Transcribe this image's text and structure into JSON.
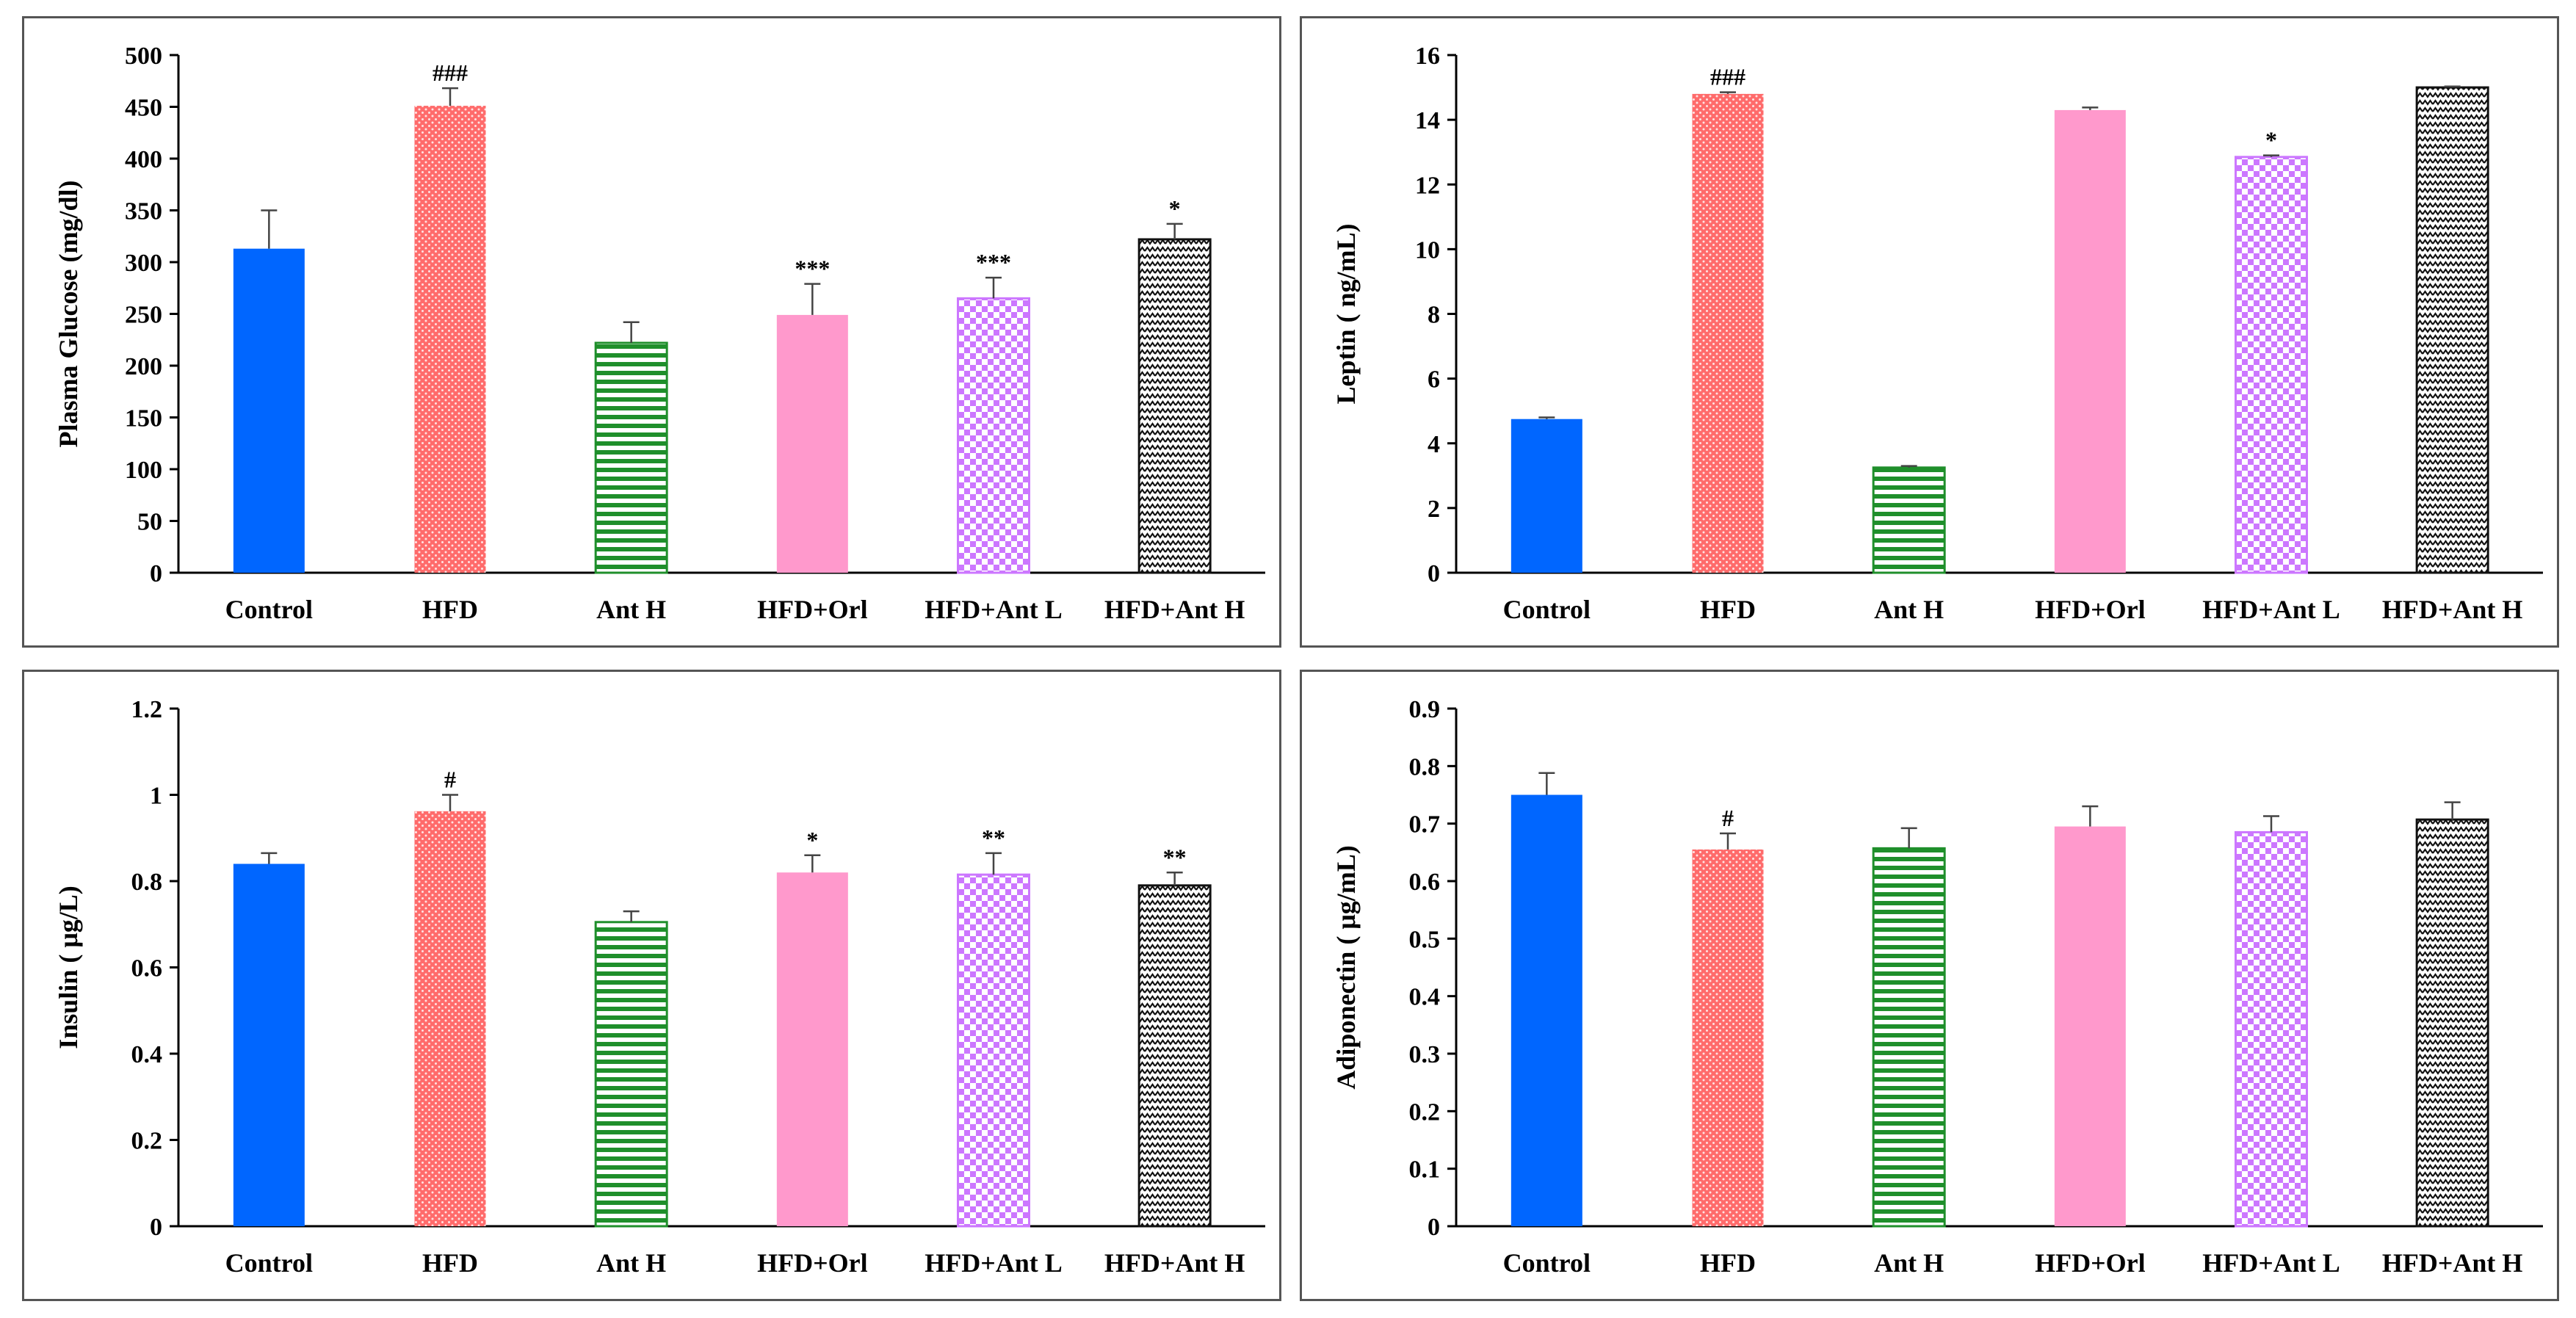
{
  "chart_data": [
    {
      "type": "bar",
      "ylabel": "Plasma Glucose (mg/dl)",
      "ylim": [
        0,
        500
      ],
      "yticks": [
        0,
        50,
        100,
        150,
        200,
        250,
        300,
        350,
        400,
        450,
        500
      ],
      "categories": [
        "Control",
        "HFD",
        "Ant H",
        "HFD+Orl",
        "HFD+Ant L",
        "HFD+Ant H"
      ],
      "values": [
        313,
        451,
        222,
        249,
        265,
        322
      ],
      "errors": [
        37,
        17,
        20,
        30,
        20,
        15
      ],
      "annotations": [
        "",
        "###",
        "",
        "***",
        "***",
        "*"
      ]
    },
    {
      "type": "bar",
      "ylabel": "Leptin ( ng/mL)",
      "ylim": [
        0,
        16
      ],
      "yticks": [
        0,
        2,
        4,
        6,
        8,
        10,
        12,
        14,
        16
      ],
      "categories": [
        "Control",
        "HFD",
        "Ant H",
        "HFD+Orl",
        "HFD+Ant L",
        "HFD+Ant H"
      ],
      "values": [
        4.75,
        14.8,
        3.25,
        14.3,
        12.85,
        15.0
      ],
      "errors": [
        0.05,
        0.05,
        0.05,
        0.08,
        0.05,
        0.03
      ],
      "annotations": [
        "",
        "###",
        "",
        "",
        "*",
        ""
      ]
    },
    {
      "type": "bar",
      "ylabel": "Insulin ( μg/L)",
      "ylim": [
        0,
        1.2
      ],
      "yticks": [
        0,
        0.2,
        0.4,
        0.6,
        0.8,
        1,
        1.2
      ],
      "categories": [
        "Control",
        "HFD",
        "Ant H",
        "HFD+Orl",
        "HFD+Ant L",
        "HFD+Ant H"
      ],
      "values": [
        0.84,
        0.962,
        0.705,
        0.82,
        0.815,
        0.79
      ],
      "errors": [
        0.025,
        0.038,
        0.025,
        0.04,
        0.05,
        0.03
      ],
      "annotations": [
        "",
        "#",
        "",
        "*",
        "**",
        "**"
      ]
    },
    {
      "type": "bar",
      "ylabel": "Adiponectin ( μg/mL)",
      "ylim": [
        0,
        0.9
      ],
      "yticks": [
        0,
        0.1,
        0.2,
        0.3,
        0.4,
        0.5,
        0.6,
        0.7,
        0.8,
        0.9
      ],
      "categories": [
        "Control",
        "HFD",
        "Ant H",
        "HFD+Orl",
        "HFD+Ant L",
        "HFD+Ant H"
      ],
      "values": [
        0.75,
        0.655,
        0.657,
        0.695,
        0.685,
        0.707
      ],
      "errors": [
        0.038,
        0.028,
        0.035,
        0.035,
        0.028,
        0.03
      ],
      "annotations": [
        "",
        "#",
        "",
        "",
        "",
        ""
      ]
    }
  ],
  "series_styles": [
    {
      "fill": "#0066ff",
      "pattern": "solid"
    },
    {
      "fill": "#ff6b6b",
      "pattern": "dots"
    },
    {
      "fill": "#1f8f2b",
      "pattern": "hstripes"
    },
    {
      "fill": "#ff99cc",
      "pattern": "solid"
    },
    {
      "fill": "#cc77ff",
      "pattern": "checker"
    },
    {
      "fill": "#111111",
      "pattern": "zigzag"
    }
  ]
}
